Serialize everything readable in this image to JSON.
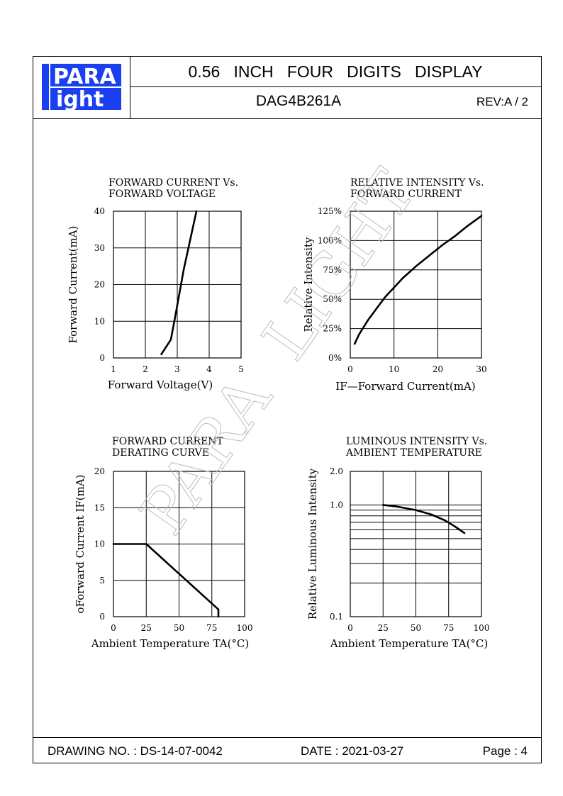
{
  "header": {
    "logo_top": "PARA",
    "logo_bottom": "ight",
    "logo_letter": "L",
    "title": "0.56   INCH   FOUR   DIGITS   DISPLAY",
    "part_number": "DAG4B261A",
    "revision": "REV:A / 2"
  },
  "footer": {
    "drawing_no": "DRAWING NO. : DS-14-07-0042",
    "date": "DATE : 2021-03-27",
    "page": "Page : 4"
  },
  "watermark": "PARA  LIGHT",
  "colors": {
    "logo_blue": "#1a3ff0",
    "ink": "#000000"
  },
  "chart_data": [
    {
      "type": "line",
      "title": "FORWARD  CURRENT  Vs.",
      "subtitle": "FORWARD  VOLTAGE",
      "xlabel": "Forward  Voltage(V)",
      "ylabel": "Forward  Current(mA)",
      "xlim": [
        1,
        5
      ],
      "ylim": [
        0,
        40
      ],
      "xticks": [
        "1",
        "2",
        "3",
        "4",
        "5"
      ],
      "yticks": [
        "0",
        "10",
        "20",
        "30",
        "40"
      ],
      "grid": true,
      "series": [
        {
          "x": [
            2.5,
            2.8,
            2.95,
            3.2,
            3.6
          ],
          "y": [
            1,
            5,
            12,
            24,
            40
          ]
        }
      ]
    },
    {
      "type": "line",
      "title": "RELATIVE  INTENSITY  Vs.",
      "subtitle": "FORWARD  CURRENT",
      "xlabel": "IF—Forward  Current(mA)",
      "ylabel": "Relative  Intensity",
      "xlim": [
        0,
        30
      ],
      "ylim": [
        0,
        125
      ],
      "xticks": [
        "0",
        "10",
        "20",
        "30"
      ],
      "yticks": [
        "0%",
        "25%",
        "50%",
        "75%",
        "100%",
        "125%"
      ],
      "grid": true,
      "series": [
        {
          "x": [
            1,
            2,
            4,
            6,
            8,
            10,
            12,
            15,
            18,
            21,
            24,
            27,
            30
          ],
          "y": [
            12,
            20,
            32,
            42,
            52,
            60,
            68,
            78,
            87,
            96,
            104,
            113,
            121
          ]
        }
      ]
    },
    {
      "type": "line",
      "title": "FORWARD  CURRENT",
      "subtitle": "DERATING  CURVE",
      "xlabel": "Ambient  Temperature  TA(°C)",
      "ylabel": "Forward  Current  IF(mA)",
      "ylabel_prefix": "o",
      "xlim": [
        0,
        100
      ],
      "ylim": [
        0,
        20
      ],
      "xticks": [
        "0",
        "25",
        "50",
        "75",
        "100"
      ],
      "yticks": [
        "0",
        "5",
        "10",
        "15",
        "20"
      ],
      "grid": true,
      "series": [
        {
          "x": [
            0,
            25,
            80,
            80
          ],
          "y": [
            10,
            10,
            1,
            0
          ]
        }
      ]
    },
    {
      "type": "line",
      "title": "LUMINOUS  INTENSITY  Vs.",
      "subtitle": "AMBIENT  TEMPERATURE",
      "xlabel": "Ambient  Temperature  TA(°C)",
      "ylabel": "Relative  Luminous  Intensity",
      "xlim": [
        0,
        100
      ],
      "ylim": [
        0.1,
        2.0
      ],
      "yscale": "log",
      "xticks": [
        "0",
        "25",
        "50",
        "75",
        "100"
      ],
      "yticks": [
        "0.1",
        "1.0",
        "2.0"
      ],
      "grid": true,
      "series": [
        {
          "x": [
            25,
            35,
            50,
            62,
            72,
            80,
            87
          ],
          "y": [
            1.0,
            0.97,
            0.9,
            0.82,
            0.73,
            0.64,
            0.56
          ]
        }
      ]
    }
  ]
}
